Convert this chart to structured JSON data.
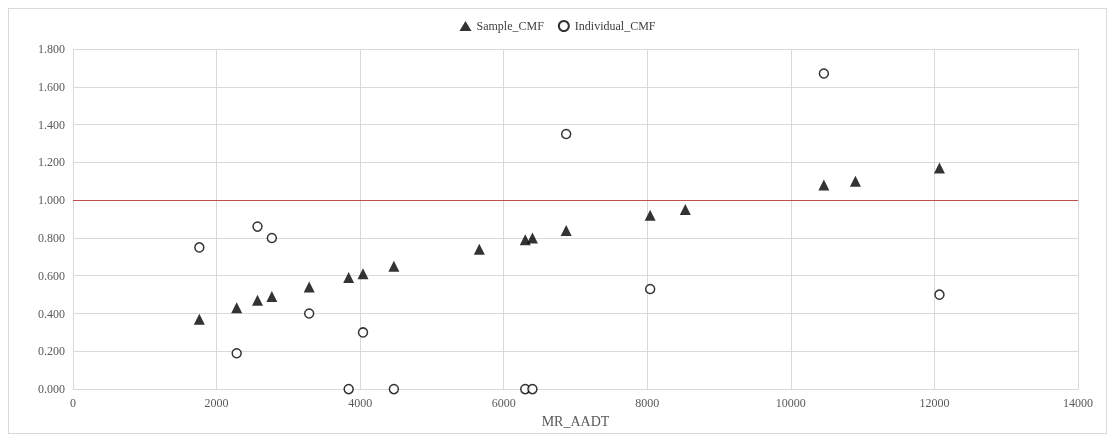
{
  "chart_data": {
    "type": "scatter",
    "xlabel": "MR_AADT",
    "legend": "top",
    "grid": true,
    "xlim": [
      0,
      14000
    ],
    "xticks": [
      0,
      2000,
      4000,
      6000,
      8000,
      10000,
      12000,
      14000
    ],
    "ylim": [
      0,
      1.8
    ],
    "yticks": [
      {
        "value": 0,
        "label": "0.000"
      },
      {
        "value": 0.2,
        "label": "0.200"
      },
      {
        "value": 0.4,
        "label": "0.400"
      },
      {
        "value": 0.6,
        "label": "0.600"
      },
      {
        "value": 0.8,
        "label": "0.800"
      },
      {
        "value": 1,
        "label": "1.000"
      },
      {
        "value": 1.2,
        "label": "1.200"
      },
      {
        "value": 1.4,
        "label": "1.400"
      },
      {
        "value": 1.6,
        "label": "1.600"
      },
      {
        "value": 1.8,
        "label": "1.800"
      }
    ],
    "ref_lines": [
      {
        "axis": "y",
        "value": 1,
        "color": "#c0504d"
      }
    ],
    "series": [
      {
        "name": "Sample_CMF",
        "color": "#000000",
        "marker": "triangle",
        "x": [
          1760,
          2280,
          2570,
          2770,
          3290,
          3840,
          4040,
          4470,
          5660,
          6300,
          6400,
          6870,
          8040,
          8530,
          10460,
          10900,
          12070
        ],
        "values": [
          0.37,
          0.43,
          0.47,
          0.49,
          0.54,
          0.59,
          0.61,
          0.65,
          0.74,
          0.79,
          0.8,
          0.84,
          0.92,
          0.95,
          1.08,
          1.1,
          1.17
        ]
      },
      {
        "name": "Individual_CMF",
        "color": "#000000",
        "marker": "circle",
        "x": [
          1760,
          2280,
          2570,
          2770,
          3290,
          3840,
          4040,
          4470,
          6300,
          6400,
          6870,
          8040,
          10460,
          12070
        ],
        "values": [
          0.75,
          0.19,
          0.86,
          0.8,
          0.4,
          0,
          0.3,
          0,
          0,
          0,
          1.35,
          0.53,
          1.67,
          0.5
        ]
      }
    ]
  }
}
